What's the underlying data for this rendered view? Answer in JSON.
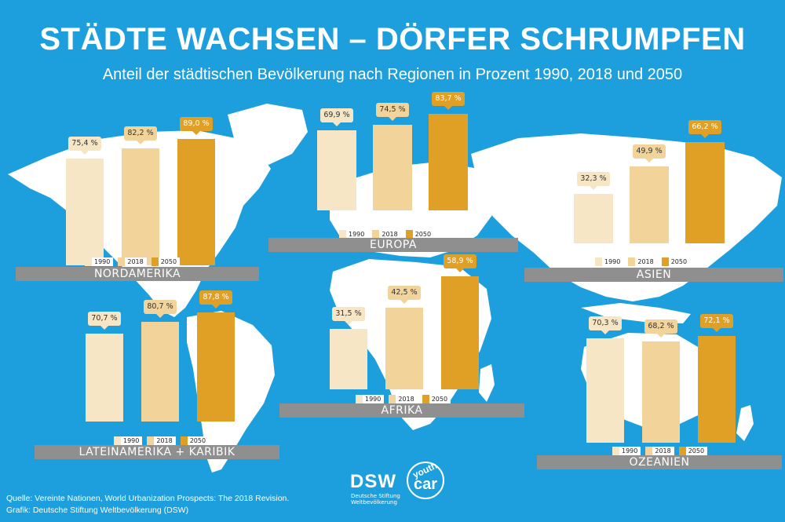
{
  "title": "STÄDTE WACHSEN – DÖRFER SCHRUMPFEN",
  "subtitle": "Anteil der städtischen Bevölkerung nach Regionen in Prozent 1990, 2018 und 2050",
  "colors": {
    "background": "#1c9fdc",
    "map": "#ffffff",
    "bar_1990": "#f7e6c6",
    "bar_2018": "#f2d49a",
    "bar_2050": "#e0a025",
    "region_label_bg": "#8f8f8f"
  },
  "legend_labels": [
    "1990",
    "2018",
    "2050"
  ],
  "chart_data": [
    {
      "type": "bar",
      "region": "NORDAMERIKA",
      "categories": [
        "1990",
        "2018",
        "2050"
      ],
      "values": [
        75.4,
        82.2,
        89.0
      ],
      "value_labels": [
        "75,4 %",
        "82,2 %",
        "89,0 %"
      ]
    },
    {
      "type": "bar",
      "region": "EUROPA",
      "categories": [
        "1990",
        "2018",
        "2050"
      ],
      "values": [
        69.9,
        74.5,
        83.7
      ],
      "value_labels": [
        "69,9 %",
        "74,5 %",
        "83,7 %"
      ]
    },
    {
      "type": "bar",
      "region": "ASIEN",
      "categories": [
        "1990",
        "2018",
        "2050"
      ],
      "values": [
        32.3,
        49.9,
        66.2
      ],
      "value_labels": [
        "32,3 %",
        "49,9 %",
        "66,2 %"
      ]
    },
    {
      "type": "bar",
      "region": "LATEINAMERIKA + KARIBIK",
      "categories": [
        "1990",
        "2018",
        "2050"
      ],
      "values": [
        70.7,
        80.7,
        87.8
      ],
      "value_labels": [
        "70,7 %",
        "80,7 %",
        "87,8 %"
      ]
    },
    {
      "type": "bar",
      "region": "AFRIKA",
      "categories": [
        "1990",
        "2018",
        "2050"
      ],
      "values": [
        31.5,
        42.5,
        58.9
      ],
      "value_labels": [
        "31,5 %",
        "42,5 %",
        "58,9 %"
      ]
    },
    {
      "type": "bar",
      "region": "OZEANIEN",
      "categories": [
        "1990",
        "2018",
        "2050"
      ],
      "values": [
        70.3,
        68.2,
        72.1
      ],
      "value_labels": [
        "70,3 %",
        "68,2 %",
        "72,1 %"
      ]
    }
  ],
  "source_line1": "Quelle: Vereinte Nationen, World Urbanization Prospects: The 2018 Revision.",
  "source_line2": "Grafik: Deutsche Stiftung Weltbevölkerung (DSW)",
  "logo": {
    "dsw": "DSW",
    "dsw_sub1": "Deutsche Stiftung",
    "dsw_sub2": "Weltbevölkerung",
    "youth": "youth",
    "car": "car"
  }
}
